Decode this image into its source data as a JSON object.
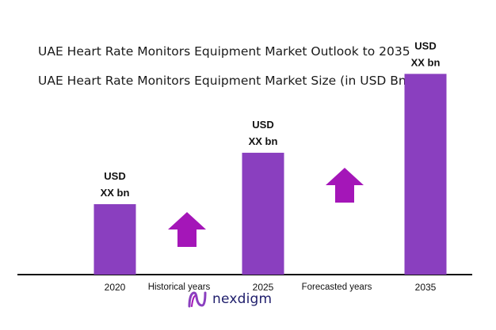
{
  "header": {
    "title": "UAE Heart Rate Monitors Equipment Market Outlook to 2035",
    "subtitle": "UAE Heart Rate Monitors Equipment Market Size (in USD Bn)"
  },
  "chart_data": {
    "type": "bar",
    "title": "UAE Heart Rate Monitors Equipment Market Outlook to 2035",
    "subtitle": "UAE Heart Rate Monitors Equipment Market Size (in USD Bn)",
    "categories": [
      "2020",
      "2025",
      "2035"
    ],
    "relative_values": [
      1.0,
      1.73,
      2.85
    ],
    "data_labels": [
      [
        "USD",
        "XX bn"
      ],
      [
        "USD",
        "XX bn"
      ],
      [
        "USD",
        "XX bn"
      ]
    ],
    "period_labels": [
      "Historical years",
      "Forecasted years"
    ],
    "bar_color": "#8a3fbf",
    "arrow_color": "#a416b8",
    "axis_color": "#111111",
    "grid": false,
    "legend": "none"
  },
  "logo": {
    "text": "nexdigm",
    "icon": "nexdigm-logo-icon",
    "color": "#1e1d6b",
    "accent": "#a416b8"
  }
}
